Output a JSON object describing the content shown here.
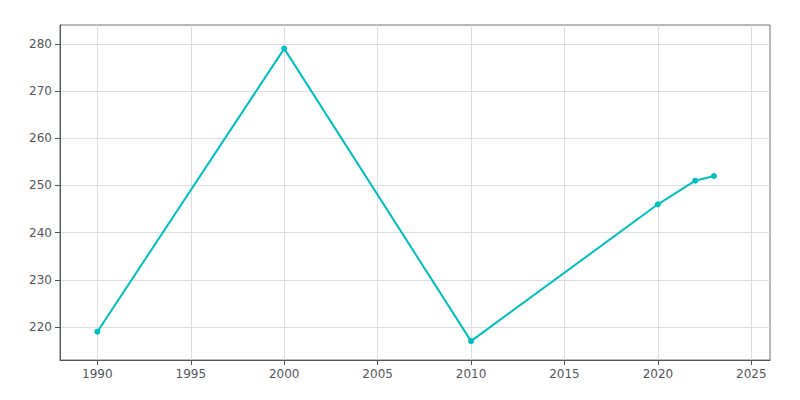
{
  "chart_data": {
    "type": "line",
    "x": [
      1990,
      2000,
      2010,
      2020,
      2022,
      2023
    ],
    "values": [
      219,
      279,
      217,
      246,
      251,
      252
    ],
    "color": "#00bfbf",
    "marker": "circle",
    "xlim": [
      1988,
      2026
    ],
    "ylim": [
      213,
      284
    ],
    "xticks": [
      1990,
      1995,
      2000,
      2005,
      2010,
      2015,
      2020,
      2025
    ],
    "yticks": [
      220,
      230,
      240,
      250,
      260,
      270,
      280
    ],
    "grid": true
  }
}
